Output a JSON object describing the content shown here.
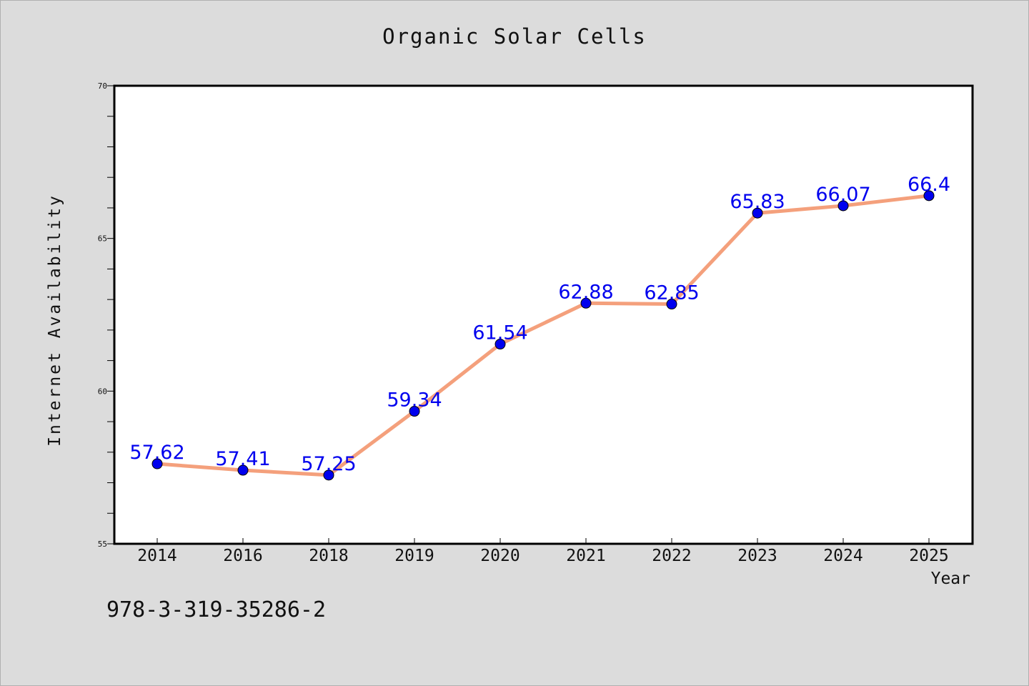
{
  "footer": {
    "isbn": "978-3-319-35286-2"
  },
  "chart_data": {
    "type": "line",
    "title": "Organic Solar Cells",
    "xlabel": "Year",
    "ylabel": "Internet Availability",
    "categories": [
      "2014",
      "2016",
      "2018",
      "2019",
      "2020",
      "2021",
      "2022",
      "2023",
      "2024",
      "2025"
    ],
    "series": [
      {
        "values": [
          57.62,
          57.41,
          57.25,
          59.34,
          61.54,
          62.88,
          62.85,
          65.83,
          66.07,
          66.4
        ],
        "labels": [
          "57.62",
          "57.41",
          "57.25",
          "59.34",
          "61.54",
          "62.88",
          "62.85",
          "65.83",
          "66.07",
          "66.4"
        ],
        "line_color": "#f4a07c",
        "marker_color": "#0000ee",
        "label_color": "#0000ee"
      }
    ],
    "ylim": [
      55,
      70
    ],
    "yticks": [
      55,
      60,
      65,
      70
    ],
    "ytick_labels": [
      "55",
      "60",
      "65",
      "70"
    ],
    "y_minor_step": 1,
    "grid": false,
    "legend": "none"
  }
}
